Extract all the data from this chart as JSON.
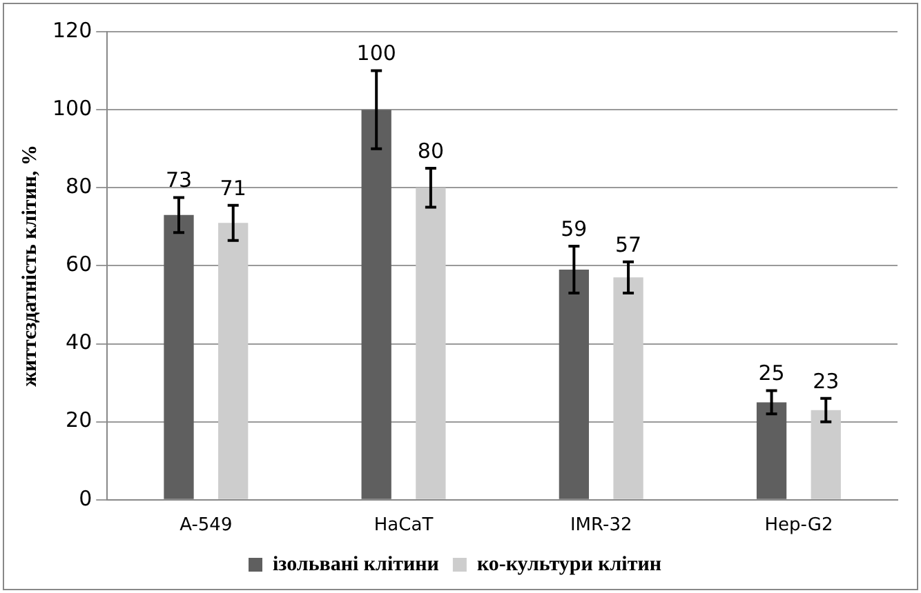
{
  "chart_data": {
    "type": "bar",
    "ylabel": "життєздатність клітин, %",
    "categories": [
      "A-549",
      "HaCaT",
      "IMR-32",
      "Hep-G2"
    ],
    "series": [
      {
        "name": "ізольвані клітини",
        "color": "#5f5f5f",
        "values": [
          73,
          100,
          59,
          25
        ],
        "errors": [
          4.5,
          10,
          6,
          3
        ]
      },
      {
        "name": "ко-культури клітин",
        "color": "#cdcdcd",
        "values": [
          71,
          80,
          57,
          23
        ],
        "errors": [
          4.5,
          5,
          4,
          3
        ]
      }
    ],
    "ylim": [
      0,
      120
    ],
    "yticks": [
      0,
      20,
      40,
      60,
      80,
      100,
      120
    ],
    "grid": "y",
    "legend": "bottom",
    "data_labels": true
  }
}
